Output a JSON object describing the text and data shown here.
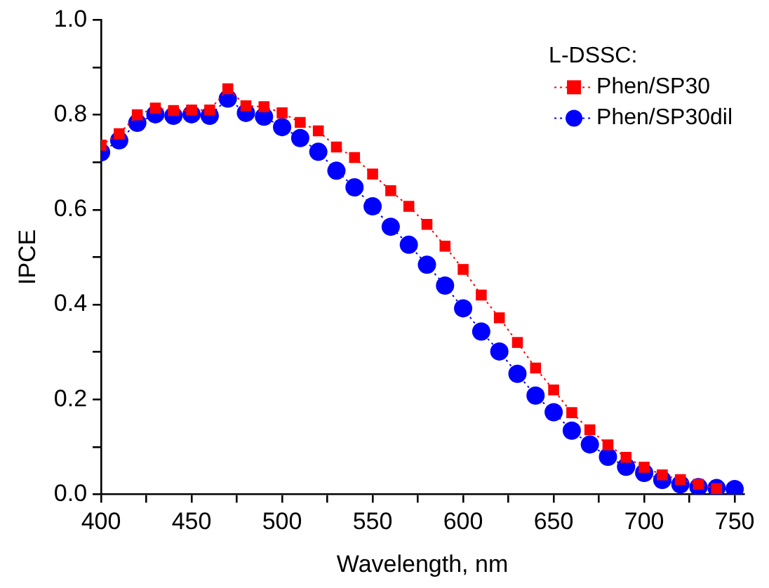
{
  "chart_data": {
    "type": "line",
    "xlabel": "Wavelength, nm",
    "ylabel": "IPCE",
    "legend_title": "L-DSSC:",
    "legend": "top right",
    "grid": false,
    "line_style": "dotted",
    "x": [
      400,
      410,
      420,
      430,
      440,
      450,
      460,
      470,
      480,
      490,
      500,
      510,
      520,
      530,
      540,
      550,
      560,
      570,
      580,
      590,
      600,
      610,
      620,
      630,
      640,
      650,
      660,
      670,
      680,
      690,
      700,
      710,
      720,
      730,
      740,
      750
    ],
    "series": [
      {
        "name": "Phen/SP30",
        "color": "#ff0000",
        "marker": "square",
        "values": [
          0.736,
          0.76,
          0.8,
          0.814,
          0.809,
          0.81,
          0.81,
          0.855,
          0.819,
          0.817,
          0.804,
          0.784,
          0.766,
          0.732,
          0.71,
          0.675,
          0.64,
          0.607,
          0.569,
          0.523,
          0.474,
          0.42,
          0.372,
          0.32,
          0.266,
          0.22,
          0.172,
          0.136,
          0.104,
          0.078,
          0.057,
          0.041,
          0.031,
          0.021,
          0.012,
          null
        ]
      },
      {
        "name": "Phen/SP30dil",
        "color": "#0000ff",
        "marker": "circle",
        "values": [
          0.721,
          0.746,
          0.783,
          0.801,
          0.798,
          0.801,
          0.798,
          0.834,
          0.804,
          0.796,
          0.774,
          0.751,
          0.722,
          0.682,
          0.647,
          0.607,
          0.564,
          0.526,
          0.484,
          0.44,
          0.392,
          0.343,
          0.301,
          0.254,
          0.208,
          0.173,
          0.134,
          0.105,
          0.079,
          0.058,
          0.045,
          0.03,
          0.021,
          0.015,
          0.013,
          0.011
        ]
      }
    ],
    "xlim": [
      400,
      755
    ],
    "xticks": [
      400,
      {
        "value": 425,
        "label": null
      },
      450,
      {
        "value": 475,
        "label": null
      },
      500,
      {
        "value": 525,
        "label": null
      },
      550,
      {
        "value": 575,
        "label": null
      },
      600,
      {
        "value": 625,
        "label": null
      },
      650,
      {
        "value": 675,
        "label": null
      },
      700,
      {
        "value": 725,
        "label": null
      },
      750
    ],
    "ylim": [
      0,
      1
    ],
    "yticks": [
      {
        "value": 0,
        "label": "0.0"
      },
      {
        "value": 0.1,
        "label": null
      },
      {
        "value": 0.2,
        "label": "0.2"
      },
      {
        "value": 0.3,
        "label": null
      },
      {
        "value": 0.4,
        "label": "0.4"
      },
      {
        "value": 0.5,
        "label": null
      },
      {
        "value": 0.6,
        "label": "0.6"
      },
      {
        "value": 0.7,
        "label": null
      },
      {
        "value": 0.8,
        "label": "0.8"
      },
      {
        "value": 0.9,
        "label": null
      },
      {
        "value": 1,
        "label": "1.0"
      }
    ]
  }
}
